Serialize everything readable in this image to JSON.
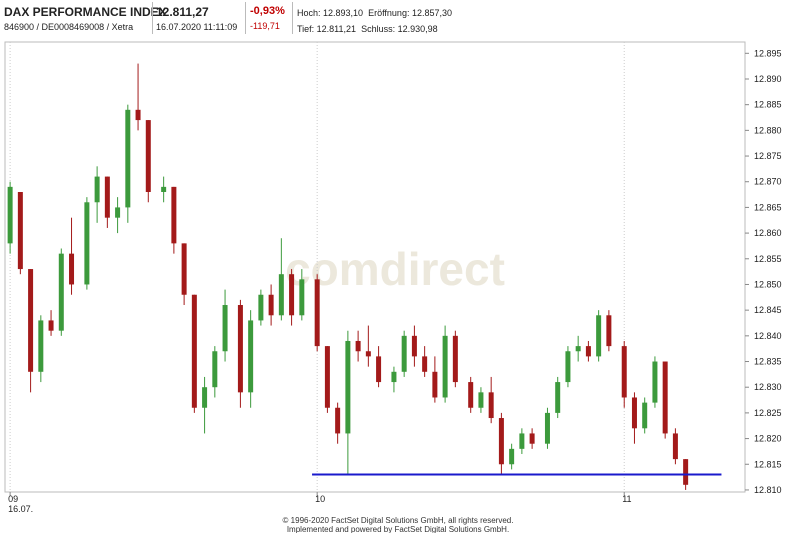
{
  "header": {
    "title": "DAX PERFORMANCE INDEX",
    "ids": "846900 / DE0008469008 / Xetra",
    "price": "12.811,27",
    "timestamp": "16.07.2020 11:11:09",
    "change_pct": "-0,93%",
    "change_abs": "-119,71",
    "high": "Hoch: 12.893,10",
    "open": "Eröffnung: 12.857,30",
    "low": "Tief: 12.811,21",
    "close": "Schluss: 12.930,98"
  },
  "chart_data": {
    "type": "candlestick",
    "x": [
      540,
      542,
      544,
      546,
      548,
      550,
      552,
      555,
      557,
      559,
      561,
      563,
      565,
      567,
      570,
      572,
      574,
      576,
      578,
      580,
      582,
      585,
      587,
      589,
      591,
      593,
      595,
      597,
      600,
      602,
      604,
      606,
      608,
      610,
      612,
      615,
      617,
      619,
      621,
      623,
      625,
      627,
      630,
      632,
      634,
      636,
      638,
      640,
      642,
      645,
      647,
      649,
      651,
      653,
      655,
      657,
      660,
      662,
      664,
      666,
      668,
      670,
      672
    ],
    "open": [
      12858,
      12868,
      12853,
      12833,
      12843,
      12841,
      12856,
      12850,
      12866,
      12871,
      12863,
      12865,
      12884,
      12882,
      12868,
      12869,
      12858,
      12848,
      12826,
      12830,
      12837,
      12846,
      12829,
      12843,
      12848,
      12844,
      12852,
      12844,
      12851,
      12838,
      12826,
      12821,
      12839,
      12837,
      12836,
      12831,
      12833,
      12840,
      12836,
      12833,
      12828,
      12840,
      12831,
      12826,
      12829,
      12824,
      12815,
      12818,
      12821,
      12819,
      12825,
      12831,
      12837,
      12838,
      12836,
      12844,
      12838,
      12828,
      12822,
      12827,
      12835,
      12821,
      12816
    ],
    "high": [
      12870,
      12868,
      12853,
      12844,
      12845,
      12857,
      12863,
      12867,
      12873,
      12871,
      12867,
      12885,
      12893,
      12882,
      12871,
      12869,
      12858,
      12848,
      12832,
      12838,
      12849,
      12847,
      12845,
      12849,
      12850,
      12859,
      12853,
      12853,
      12852,
      12838,
      12827,
      12841,
      12841,
      12842,
      12838,
      12834,
      12841,
      12842,
      12838,
      12836,
      12842,
      12841,
      12832,
      12830,
      12832,
      12825,
      12819,
      12822,
      12822,
      12826,
      12832,
      12838,
      12840,
      12839,
      12845,
      12845,
      12839,
      12829,
      12828,
      12836,
      12835,
      12822,
      12816
    ],
    "low": [
      12856,
      12852,
      12829,
      12831,
      12840,
      12840,
      12848,
      12849,
      12862,
      12861,
      12860,
      12862,
      12880,
      12866,
      12866,
      12856,
      12846,
      12825,
      12821,
      12828,
      12835,
      12826,
      12826,
      12842,
      12842,
      12843,
      12842,
      12843,
      12837,
      12825,
      12819,
      12813,
      12835,
      12834,
      12830,
      12829,
      12832,
      12834,
      12832,
      12827,
      12827,
      12830,
      12825,
      12825,
      12823,
      12813,
      12814,
      12817,
      12818,
      12818,
      12824,
      12830,
      12835,
      12835,
      12835,
      12837,
      12826,
      12819,
      12821,
      12826,
      12820,
      12815,
      12810
    ],
    "close": [
      12869,
      12853,
      12833,
      12843,
      12841,
      12856,
      12850,
      12866,
      12871,
      12863,
      12865,
      12884,
      12882,
      12868,
      12869,
      12858,
      12848,
      12826,
      12830,
      12837,
      12846,
      12829,
      12843,
      12848,
      12844,
      12852,
      12844,
      12851,
      12838,
      12826,
      12821,
      12839,
      12837,
      12836,
      12831,
      12833,
      12840,
      12836,
      12833,
      12828,
      12840,
      12831,
      12826,
      12829,
      12824,
      12815,
      12818,
      12821,
      12819,
      12825,
      12831,
      12837,
      12838,
      12836,
      12844,
      12838,
      12828,
      12822,
      12827,
      12835,
      12821,
      12816,
      12811
    ],
    "up_color": "#3c9a3c",
    "down_color": "#a31a1a",
    "xlim": [
      539,
      683.6
    ],
    "ylim": [
      12809.6,
      12897.2
    ],
    "xticks": [
      {
        "value": 540,
        "label": "09"
      },
      {
        "value": 600,
        "label": "10"
      },
      {
        "value": 660,
        "label": "11"
      }
    ],
    "x_date_label": "16.07.",
    "yticks": [
      {
        "value": 12810,
        "label": "12.810"
      },
      {
        "value": 12815,
        "label": "12.815"
      },
      {
        "value": 12820,
        "label": "12.820"
      },
      {
        "value": 12825,
        "label": "12.825"
      },
      {
        "value": 12830,
        "label": "12.830"
      },
      {
        "value": 12835,
        "label": "12.835"
      },
      {
        "value": 12840,
        "label": "12.840"
      },
      {
        "value": 12845,
        "label": "12.845"
      },
      {
        "value": 12850,
        "label": "12.850"
      },
      {
        "value": 12855,
        "label": "12.855"
      },
      {
        "value": 12860,
        "label": "12.860"
      },
      {
        "value": 12865,
        "label": "12.865"
      },
      {
        "value": 12870,
        "label": "12.870"
      },
      {
        "value": 12875,
        "label": "12.875"
      },
      {
        "value": 12880,
        "label": "12.880"
      },
      {
        "value": 12885,
        "label": "12.885"
      },
      {
        "value": 12890,
        "label": "12.890"
      },
      {
        "value": 12895,
        "label": "12.895"
      }
    ],
    "grid_x": true,
    "hline": {
      "value": 12813,
      "from": 599,
      "to": 679,
      "color": "#1a1acc"
    },
    "watermark": "comdirect",
    "footer": [
      "© 1996-2020 FactSet Digital Solutions GmbH, all rights reserved.",
      "Implemented and powered by FactSet Digital Solutions GmbH."
    ]
  }
}
